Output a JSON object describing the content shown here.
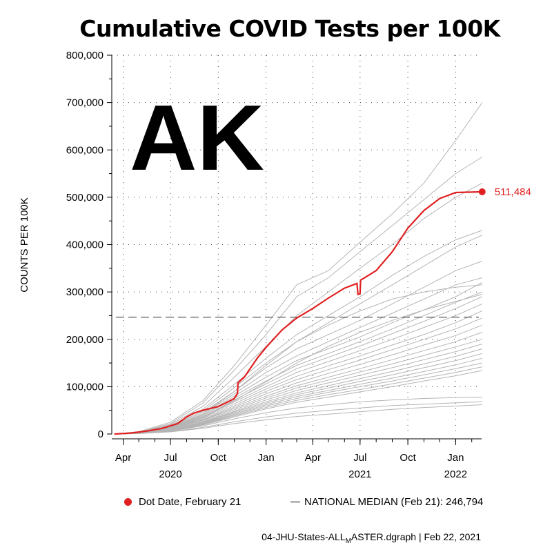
{
  "title": "Cumulative COVID Tests per 100K",
  "state_label": "AK",
  "legend": {
    "dot_date": "Dot Date, February 21",
    "median": "NATIONAL MEDIAN (Feb 21): 246,794"
  },
  "footer": {
    "file_prefix": "04-JHU-States-ALL",
    "file_sub": "M",
    "file_suffix": "ASTER.dgraph | Feb 22, 2021"
  },
  "colors": {
    "highlight": "#e02020",
    "others": "#b4b4b4",
    "median": "#555555"
  },
  "chart_data": {
    "type": "line",
    "ylabel": "COUNTS PER 100K",
    "ylim": [
      0,
      800000
    ],
    "yticks": [
      0,
      100000,
      200000,
      300000,
      400000,
      500000,
      600000,
      700000,
      800000
    ],
    "ytick_labels": [
      "0",
      "100,000",
      "200,000",
      "300,000",
      "400,000",
      "500,000",
      "600,000",
      "700,000",
      "800,000"
    ],
    "xlim": [
      "2020-03-10",
      "2022-02-20"
    ],
    "xticks": [
      {
        "date": "2020-04-01",
        "label": "Apr"
      },
      {
        "date": "2020-07-01",
        "label": "Jul"
      },
      {
        "date": "2020-10-01",
        "label": "Oct"
      },
      {
        "date": "2021-01-01",
        "label": "Jan"
      },
      {
        "date": "2021-04-01",
        "label": "Apr"
      },
      {
        "date": "2021-07-01",
        "label": "Jul"
      },
      {
        "date": "2021-10-01",
        "label": "Oct"
      },
      {
        "date": "2022-01-01",
        "label": "Jan"
      }
    ],
    "year_labels": [
      {
        "date": "2020-07-01",
        "label": "2020"
      },
      {
        "date": "2021-07-01",
        "label": "2021"
      },
      {
        "date": "2022-01-01",
        "label": "2022"
      }
    ],
    "grid": true,
    "median_value": 246794,
    "highlight": {
      "label": "511,484",
      "end_value": 511484,
      "points": [
        [
          "2020-03-15",
          0
        ],
        [
          "2020-04-15",
          2000
        ],
        [
          "2020-05-15",
          6000
        ],
        [
          "2020-06-15",
          12000
        ],
        [
          "2020-07-15",
          22000
        ],
        [
          "2020-08-01",
          36000
        ],
        [
          "2020-08-15",
          44000
        ],
        [
          "2020-09-01",
          50000
        ],
        [
          "2020-10-01",
          58000
        ],
        [
          "2020-10-20",
          68000
        ],
        [
          "2020-11-01",
          75000
        ],
        [
          "2020-11-07",
          86000
        ],
        [
          "2020-11-08",
          108000
        ],
        [
          "2020-11-20",
          120000
        ],
        [
          "2020-12-15",
          160000
        ],
        [
          "2021-01-01",
          183000
        ],
        [
          "2021-02-01",
          220000
        ],
        [
          "2021-03-01",
          245000
        ],
        [
          "2021-04-01",
          265000
        ],
        [
          "2021-05-01",
          287000
        ],
        [
          "2021-06-01",
          308000
        ],
        [
          "2021-06-25",
          318000
        ],
        [
          "2021-06-27",
          295000
        ],
        [
          "2021-07-01",
          296000
        ],
        [
          "2021-07-02",
          325000
        ],
        [
          "2021-08-01",
          345000
        ],
        [
          "2021-09-01",
          385000
        ],
        [
          "2021-10-01",
          435000
        ],
        [
          "2021-11-01",
          472000
        ],
        [
          "2021-12-01",
          497000
        ],
        [
          "2022-01-01",
          510000
        ],
        [
          "2022-02-21",
          511484
        ]
      ]
    },
    "others": [
      {
        "values": [
          0,
          5000,
          25000,
          70000,
          145000,
          230000,
          315000,
          345000,
          405000,
          465000,
          530000,
          620000,
          700000
        ]
      },
      {
        "values": [
          0,
          4000,
          22000,
          65000,
          135000,
          210000,
          290000,
          330000,
          385000,
          440000,
          495000,
          550000,
          585000
        ]
      },
      {
        "values": [
          0,
          4000,
          20000,
          58000,
          120000,
          185000,
          250000,
          300000,
          350000,
          400000,
          455000,
          500000,
          530000
        ]
      },
      {
        "values": [
          0,
          3000,
          18000,
          52000,
          105000,
          160000,
          210000,
          250000,
          290000,
          335000,
          375000,
          410000,
          430000
        ]
      },
      {
        "values": [
          0,
          3000,
          17000,
          48000,
          98000,
          150000,
          195000,
          235000,
          275000,
          315000,
          355000,
          395000,
          420000
        ]
      },
      {
        "values": [
          0,
          3000,
          16000,
          45000,
          90000,
          140000,
          180000,
          210000,
          240000,
          275000,
          310000,
          345000,
          365000
        ]
      },
      {
        "values": [
          0,
          3000,
          15000,
          42000,
          85000,
          130000,
          165000,
          195000,
          225000,
          255000,
          285000,
          315000,
          330000
        ]
      },
      {
        "values": [
          0,
          2500,
          14000,
          40000,
          80000,
          120000,
          155000,
          180000,
          205000,
          235000,
          262000,
          290000,
          320000
        ]
      },
      {
        "values": [
          0,
          2500,
          13000,
          38000,
          76000,
          112000,
          145000,
          170000,
          195000,
          222000,
          250000,
          278000,
          300000
        ]
      },
      {
        "values": [
          0,
          2500,
          13000,
          36000,
          72000,
          106000,
          138000,
          162000,
          186000,
          212000,
          238000,
          265000,
          290000
        ]
      },
      {
        "values": [
          0,
          2000,
          12000,
          34000,
          68000,
          100000,
          130000,
          153000,
          176000,
          200000,
          225000,
          250000,
          275000
        ]
      },
      {
        "values": [
          0,
          2000,
          11000,
          32000,
          64000,
          95000,
          122000,
          144000,
          165000,
          188000,
          210000,
          235000,
          260000
        ]
      },
      {
        "values": [
          0,
          2000,
          11000,
          30000,
          60000,
          90000,
          115000,
          136000,
          156000,
          178000,
          200000,
          222000,
          245000
        ]
      },
      {
        "values": [
          0,
          2000,
          10000,
          29000,
          57000,
          85000,
          108000,
          128000,
          147000,
          167000,
          188000,
          208000,
          230000
        ]
      },
      {
        "values": [
          0,
          2000,
          10000,
          28000,
          54000,
          80000,
          102000,
          120000,
          138000,
          157000,
          176000,
          195000,
          215000
        ]
      },
      {
        "values": [
          0,
          1800,
          9000,
          26000,
          51000,
          76000,
          97000,
          114000,
          131000,
          148000,
          166000,
          184000,
          200000
        ]
      },
      {
        "values": [
          0,
          1800,
          9000,
          25000,
          48000,
          72000,
          92000,
          108000,
          124000,
          140000,
          157000,
          174000,
          190000
        ]
      },
      {
        "values": [
          0,
          1600,
          8000,
          24000,
          46000,
          68000,
          87000,
          102000,
          117000,
          132000,
          148000,
          164000,
          180000
        ]
      },
      {
        "values": [
          0,
          1600,
          8000,
          23000,
          44000,
          65000,
          83000,
          97000,
          111000,
          125000,
          140000,
          155000,
          170000
        ]
      },
      {
        "values": [
          0,
          1500,
          7500,
          22000,
          42000,
          62000,
          79000,
          92000,
          105000,
          118000,
          132000,
          146000,
          160000
        ]
      },
      {
        "values": [
          0,
          1500,
          7000,
          21000,
          40000,
          59000,
          75000,
          88000,
          100000,
          112000,
          125000,
          138000,
          150000
        ]
      },
      {
        "values": [
          0,
          1400,
          7000,
          20000,
          38000,
          56000,
          71000,
          83000,
          94000,
          106000,
          118000,
          130000,
          142000
        ]
      },
      {
        "values": [
          0,
          1300,
          6500,
          19000,
          36000,
          53000,
          67000,
          78000,
          89000,
          100000,
          112000,
          123000,
          134000
        ]
      },
      {
        "values": [
          0,
          1200,
          6000,
          17000,
          32000,
          45000,
          55000,
          62000,
          68000,
          72000,
          75000,
          77000,
          78000
        ]
      },
      {
        "values": [
          0,
          1000,
          5000,
          14000,
          26000,
          36000,
          44000,
          50000,
          55000,
          60000,
          63000,
          66000,
          68000
        ]
      },
      {
        "values": [
          0,
          1000,
          4500,
          12000,
          22000,
          30000,
          37000,
          42000,
          47000,
          52000,
          56000,
          59000,
          62000
        ]
      },
      {
        "values": [
          0,
          2500,
          14000,
          42000,
          90000,
          145000,
          195000,
          230000,
          260000,
          285000,
          300000,
          310000,
          315000
        ]
      },
      {
        "values": [
          0,
          2200,
          12000,
          35000,
          70000,
          110000,
          150000,
          185000,
          215000,
          240000,
          262000,
          280000,
          295000
        ]
      }
    ],
    "others_dates": [
      "2020-03-15",
      "2020-05-01",
      "2020-07-01",
      "2020-09-01",
      "2020-11-01",
      "2021-01-01",
      "2021-03-01",
      "2021-05-01",
      "2021-07-01",
      "2021-09-01",
      "2021-11-01",
      "2022-01-01",
      "2022-02-21"
    ]
  }
}
